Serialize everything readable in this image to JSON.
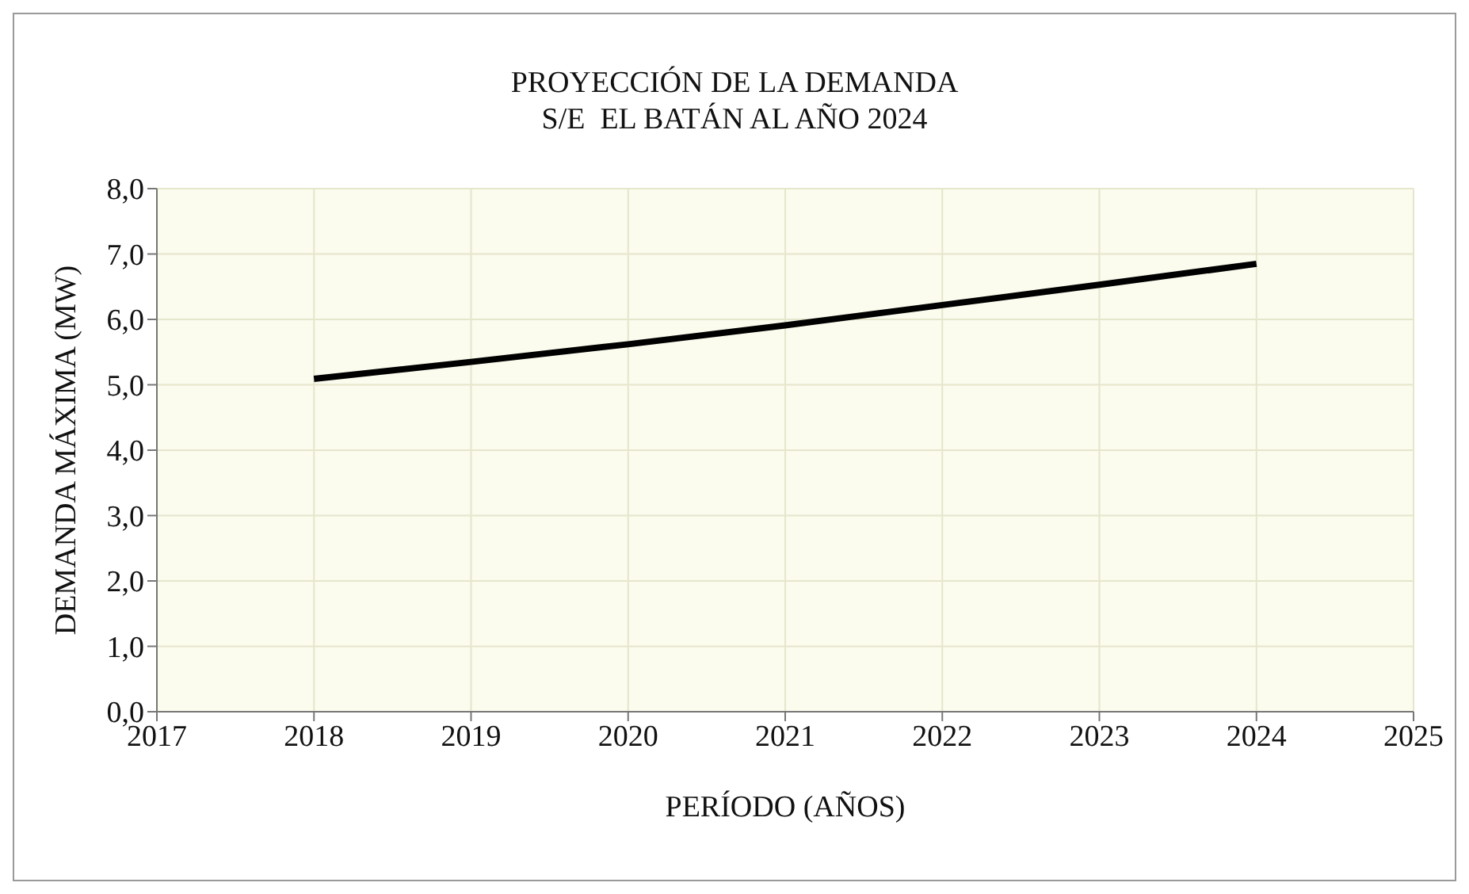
{
  "chart_data": {
    "type": "line",
    "title": "PROYECCIÓN DE LA DEMANDA",
    "subtitle": "S/E  EL BATÁN AL AÑO 2024",
    "xlabel": "PERÍODO (AÑOS)",
    "ylabel": "DEMANDA MÁXIMA (MW)",
    "x": [
      2018,
      2019,
      2020,
      2021,
      2022,
      2023,
      2024
    ],
    "series": [
      {
        "color": "#000000",
        "values": [
          5.09,
          5.35,
          5.62,
          5.91,
          6.22,
          6.53,
          6.85
        ]
      }
    ],
    "xlim": [
      2017,
      2025
    ],
    "xticks": [
      2017,
      2018,
      2019,
      2020,
      2021,
      2022,
      2023,
      2024,
      2025
    ],
    "ylim": [
      0,
      8
    ],
    "yticks": [
      {
        "value": 0,
        "label": "0,0"
      },
      {
        "value": 1,
        "label": "1,0"
      },
      {
        "value": 2,
        "label": "2,0"
      },
      {
        "value": 3,
        "label": "3,0"
      },
      {
        "value": 4,
        "label": "4,0"
      },
      {
        "value": 5,
        "label": "5,0"
      },
      {
        "value": 6,
        "label": "6,0"
      },
      {
        "value": 7,
        "label": "7,0"
      },
      {
        "value": 8,
        "label": "8,0"
      }
    ],
    "grid": true,
    "marker": "none",
    "line_style": "solid",
    "legend": false
  }
}
